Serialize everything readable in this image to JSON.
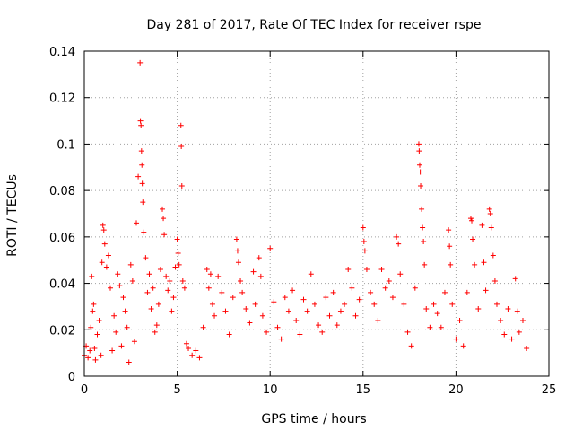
{
  "chart_data": {
    "type": "scatter",
    "title": "Day 281 of 2017, Rate Of TEC Index for receiver rspe",
    "xlabel": "GPS time / hours",
    "ylabel": "ROTI / TECUs",
    "xlim": [
      0,
      25
    ],
    "ylim": [
      0,
      0.14
    ],
    "x_ticks": [
      "0",
      "5",
      "10",
      "15",
      "20",
      "25"
    ],
    "y_ticks": [
      "0",
      "0.02",
      "0.04",
      "0.06",
      "0.08",
      "0.1",
      "0.12",
      "0.14"
    ],
    "grid": true,
    "marker": "plus",
    "colors": {
      "points": "#ff0000",
      "grid": "#a0a0a0",
      "axes": "#000000"
    },
    "series": [
      {
        "values": [
          [
            0.0,
            0.009
          ],
          [
            0.1,
            0.013
          ],
          [
            0.2,
            0.008
          ],
          [
            0.3,
            0.011
          ],
          [
            0.35,
            0.021
          ],
          [
            0.4,
            0.043
          ],
          [
            0.45,
            0.028
          ],
          [
            0.5,
            0.031
          ],
          [
            0.55,
            0.012
          ],
          [
            0.6,
            0.007
          ],
          [
            0.7,
            0.018
          ],
          [
            0.8,
            0.024
          ],
          [
            0.9,
            0.009
          ],
          [
            0.95,
            0.049
          ],
          [
            1.0,
            0.065
          ],
          [
            1.05,
            0.063
          ],
          [
            1.1,
            0.057
          ],
          [
            1.2,
            0.047
          ],
          [
            1.3,
            0.052
          ],
          [
            1.4,
            0.038
          ],
          [
            1.5,
            0.011
          ],
          [
            1.6,
            0.026
          ],
          [
            1.7,
            0.019
          ],
          [
            1.8,
            0.044
          ],
          [
            1.9,
            0.039
          ],
          [
            2.0,
            0.013
          ],
          [
            2.1,
            0.034
          ],
          [
            2.2,
            0.028
          ],
          [
            2.3,
            0.021
          ],
          [
            2.4,
            0.006
          ],
          [
            2.5,
            0.048
          ],
          [
            2.6,
            0.041
          ],
          [
            2.7,
            0.015
          ],
          [
            2.8,
            0.066
          ],
          [
            2.9,
            0.086
          ],
          [
            3.0,
            0.135
          ],
          [
            3.02,
            0.11
          ],
          [
            3.05,
            0.108
          ],
          [
            3.08,
            0.097
          ],
          [
            3.1,
            0.091
          ],
          [
            3.12,
            0.083
          ],
          [
            3.15,
            0.075
          ],
          [
            3.2,
            0.062
          ],
          [
            3.3,
            0.051
          ],
          [
            3.4,
            0.036
          ],
          [
            3.5,
            0.044
          ],
          [
            3.6,
            0.029
          ],
          [
            3.7,
            0.038
          ],
          [
            3.8,
            0.019
          ],
          [
            3.9,
            0.022
          ],
          [
            4.0,
            0.031
          ],
          [
            4.1,
            0.046
          ],
          [
            4.2,
            0.072
          ],
          [
            4.25,
            0.068
          ],
          [
            4.3,
            0.061
          ],
          [
            4.4,
            0.043
          ],
          [
            4.5,
            0.037
          ],
          [
            4.6,
            0.041
          ],
          [
            4.7,
            0.028
          ],
          [
            4.8,
            0.034
          ],
          [
            4.9,
            0.047
          ],
          [
            5.0,
            0.059
          ],
          [
            5.05,
            0.053
          ],
          [
            5.1,
            0.048
          ],
          [
            5.2,
            0.108
          ],
          [
            5.22,
            0.099
          ],
          [
            5.25,
            0.082
          ],
          [
            5.3,
            0.041
          ],
          [
            5.4,
            0.038
          ],
          [
            5.5,
            0.014
          ],
          [
            5.6,
            0.012
          ],
          [
            5.8,
            0.009
          ],
          [
            6.0,
            0.011
          ],
          [
            6.2,
            0.008
          ],
          [
            6.4,
            0.021
          ],
          [
            6.6,
            0.046
          ],
          [
            6.7,
            0.038
          ],
          [
            6.8,
            0.044
          ],
          [
            6.9,
            0.031
          ],
          [
            7.0,
            0.026
          ],
          [
            7.2,
            0.043
          ],
          [
            7.4,
            0.036
          ],
          [
            7.6,
            0.028
          ],
          [
            7.8,
            0.018
          ],
          [
            8.0,
            0.034
          ],
          [
            8.2,
            0.059
          ],
          [
            8.25,
            0.054
          ],
          [
            8.3,
            0.049
          ],
          [
            8.4,
            0.041
          ],
          [
            8.5,
            0.036
          ],
          [
            8.7,
            0.029
          ],
          [
            8.9,
            0.023
          ],
          [
            9.1,
            0.045
          ],
          [
            9.2,
            0.031
          ],
          [
            9.4,
            0.051
          ],
          [
            9.5,
            0.043
          ],
          [
            9.6,
            0.026
          ],
          [
            9.8,
            0.019
          ],
          [
            10.0,
            0.055
          ],
          [
            10.2,
            0.032
          ],
          [
            10.4,
            0.021
          ],
          [
            10.6,
            0.016
          ],
          [
            10.8,
            0.034
          ],
          [
            11.0,
            0.028
          ],
          [
            11.2,
            0.037
          ],
          [
            11.4,
            0.024
          ],
          [
            11.6,
            0.018
          ],
          [
            11.8,
            0.033
          ],
          [
            12.0,
            0.028
          ],
          [
            12.2,
            0.044
          ],
          [
            12.4,
            0.031
          ],
          [
            12.6,
            0.022
          ],
          [
            12.8,
            0.019
          ],
          [
            13.0,
            0.034
          ],
          [
            13.2,
            0.026
          ],
          [
            13.4,
            0.036
          ],
          [
            13.6,
            0.022
          ],
          [
            13.8,
            0.028
          ],
          [
            14.0,
            0.031
          ],
          [
            14.2,
            0.046
          ],
          [
            14.4,
            0.038
          ],
          [
            14.6,
            0.026
          ],
          [
            14.8,
            0.033
          ],
          [
            15.0,
            0.064
          ],
          [
            15.05,
            0.058
          ],
          [
            15.1,
            0.054
          ],
          [
            15.2,
            0.046
          ],
          [
            15.4,
            0.036
          ],
          [
            15.6,
            0.031
          ],
          [
            15.8,
            0.024
          ],
          [
            16.0,
            0.046
          ],
          [
            16.2,
            0.038
          ],
          [
            16.4,
            0.041
          ],
          [
            16.6,
            0.034
          ],
          [
            16.8,
            0.06
          ],
          [
            16.9,
            0.057
          ],
          [
            17.0,
            0.044
          ],
          [
            17.2,
            0.031
          ],
          [
            17.4,
            0.019
          ],
          [
            17.6,
            0.013
          ],
          [
            17.8,
            0.038
          ],
          [
            18.0,
            0.1
          ],
          [
            18.02,
            0.097
          ],
          [
            18.05,
            0.091
          ],
          [
            18.08,
            0.088
          ],
          [
            18.1,
            0.082
          ],
          [
            18.15,
            0.072
          ],
          [
            18.2,
            0.064
          ],
          [
            18.25,
            0.058
          ],
          [
            18.3,
            0.048
          ],
          [
            18.4,
            0.029
          ],
          [
            18.6,
            0.021
          ],
          [
            18.8,
            0.031
          ],
          [
            19.0,
            0.027
          ],
          [
            19.2,
            0.021
          ],
          [
            19.4,
            0.036
          ],
          [
            19.6,
            0.063
          ],
          [
            19.65,
            0.056
          ],
          [
            19.7,
            0.048
          ],
          [
            19.8,
            0.031
          ],
          [
            20.0,
            0.016
          ],
          [
            20.2,
            0.024
          ],
          [
            20.4,
            0.013
          ],
          [
            20.6,
            0.036
          ],
          [
            20.8,
            0.068
          ],
          [
            20.85,
            0.067
          ],
          [
            20.9,
            0.059
          ],
          [
            21.0,
            0.048
          ],
          [
            21.2,
            0.029
          ],
          [
            21.4,
            0.065
          ],
          [
            21.5,
            0.049
          ],
          [
            21.6,
            0.037
          ],
          [
            21.8,
            0.072
          ],
          [
            21.85,
            0.07
          ],
          [
            21.9,
            0.064
          ],
          [
            22.0,
            0.052
          ],
          [
            22.1,
            0.041
          ],
          [
            22.2,
            0.031
          ],
          [
            22.4,
            0.024
          ],
          [
            22.6,
            0.018
          ],
          [
            22.8,
            0.029
          ],
          [
            23.0,
            0.016
          ],
          [
            23.2,
            0.042
          ],
          [
            23.3,
            0.028
          ],
          [
            23.4,
            0.019
          ],
          [
            23.6,
            0.024
          ],
          [
            23.8,
            0.012
          ]
        ]
      }
    ]
  }
}
